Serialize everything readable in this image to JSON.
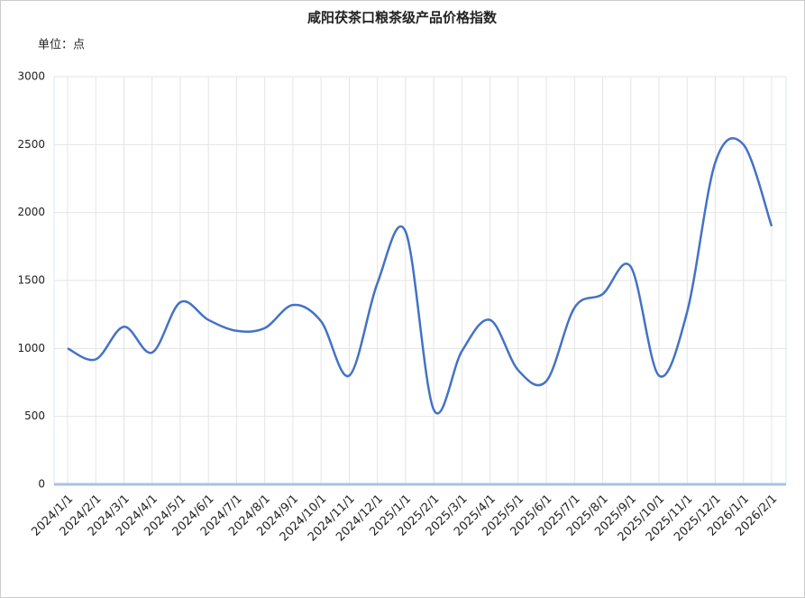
{
  "chart_data": {
    "type": "line",
    "title": "咸阳茯茶口粮茶级产品价格指数",
    "y_unit_label": "单位：点",
    "categories": [
      "2024/1/1",
      "2024/2/1",
      "2024/3/1",
      "2024/4/1",
      "2024/5/1",
      "2024/6/1",
      "2024/7/1",
      "2024/8/1",
      "2024/9/1",
      "2024/10/1",
      "2024/11/1",
      "2024/12/1",
      "2025/1/1",
      "2025/2/1",
      "2025/3/1",
      "2025/4/1",
      "2025/5/1",
      "2025/6/1",
      "2025/7/1",
      "2025/8/1",
      "2025/9/1",
      "2025/10/1",
      "2025/11/1",
      "2025/12/1",
      "2026/1/1",
      "2026/2/1"
    ],
    "values": [
      1000,
      920,
      1160,
      970,
      1340,
      1210,
      1130,
      1150,
      1320,
      1200,
      800,
      1480,
      1860,
      550,
      980,
      1210,
      840,
      760,
      1300,
      1400,
      1600,
      800,
      1270,
      2370,
      2500,
      1900
    ],
    "color": "#4472c4",
    "smooth": true,
    "ylim": [
      0,
      3000
    ],
    "yticks": [
      0,
      500,
      1000,
      1500,
      2000,
      2500,
      3000
    ],
    "grid": true
  }
}
